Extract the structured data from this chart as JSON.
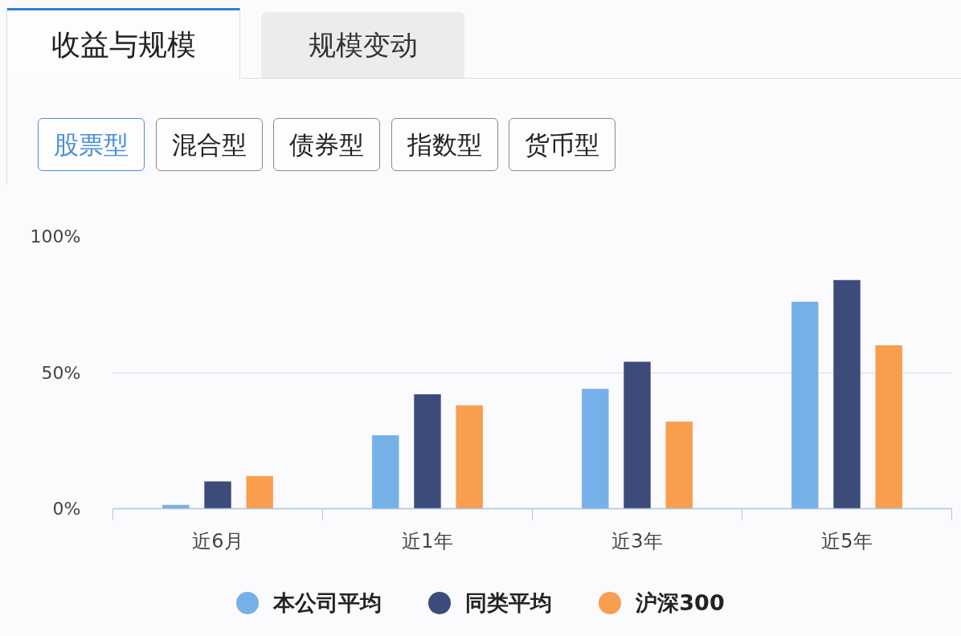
{
  "chart_data": {
    "type": "bar",
    "annotations": [
      "收益与规模",
      "规模变动",
      "股票型",
      "混合型",
      "债券型",
      "指数型",
      "货币型"
    ],
    "categories": [
      "近6月",
      "近1年",
      "近3年",
      "近5年"
    ],
    "series": [
      {
        "name": "本公司平均",
        "color": "#76b0e8",
        "values": [
          1.4,
          27,
          44,
          76
        ]
      },
      {
        "name": "同类平均",
        "color": "#3d4b7a",
        "values": [
          10,
          42,
          54,
          84
        ]
      },
      {
        "name": "沪深300",
        "color": "#f99d4f",
        "values": [
          12,
          38,
          32,
          60
        ]
      }
    ],
    "ylim": [
      0,
      100
    ],
    "yticks": [
      {
        "value": 0,
        "label": "0%"
      },
      {
        "value": 50,
        "label": "50%"
      },
      {
        "value": 100,
        "label": "100%"
      }
    ],
    "grid": "y",
    "legend": "bottom"
  }
}
